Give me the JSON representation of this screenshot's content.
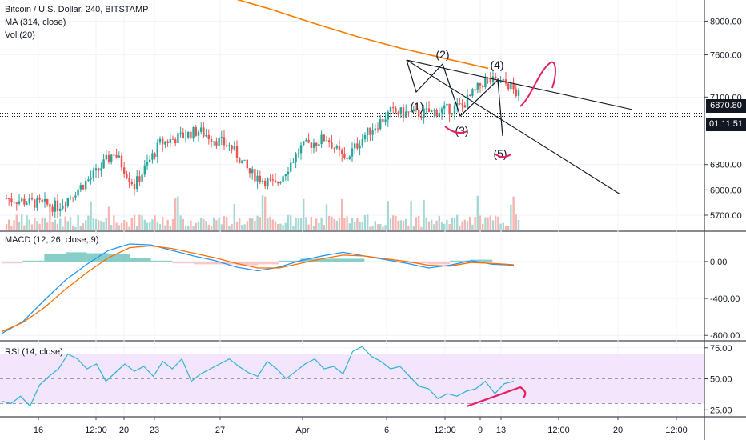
{
  "legend": {
    "symbol": "Bitcoin / U.S. Dollar, 240, BITSTAMP",
    "ma": "MA (314, close)",
    "vol": "Vol (20)",
    "macd": "MACD (12, 26, close, 9)",
    "rsi": "RSI (14, close)"
  },
  "badges": {
    "last_price": "6870.80",
    "countdown": "01:11:51"
  },
  "colors": {
    "up_candle": "#26a69a",
    "down_candle": "#ef5350",
    "ma_line": "#f57c00",
    "macd_line": "#2196f3",
    "signal_line": "#ff6d00",
    "rsi_line": "#2bb5d8",
    "rsi_band": "#f3e5fb",
    "annotation": "#e91e63",
    "drawing": "#131722"
  },
  "chart_data": [
    {
      "type": "candlestick",
      "title": "Bitcoin / U.S. Dollar, 240, BITSTAMP",
      "ylim": [
        5520,
        8250
      ],
      "y_ticks": [
        "8000.00",
        "7600.00",
        "7100.00",
        "6300.00",
        "6000.00",
        "5700.00"
      ],
      "y_tick_values": [
        8000,
        7600,
        7100,
        6300,
        6000,
        5700
      ],
      "x_ticks": [
        "16",
        "12:00",
        "20",
        "23",
        "27",
        "Apr",
        "6",
        "12:00",
        "9",
        "13",
        "12:00",
        "20",
        "12:00"
      ],
      "last_price": 6870.8,
      "wave_labels": [
        "(1)",
        "(2)",
        "(3)",
        "(4)",
        "(5)"
      ],
      "moving_average": {
        "name": "MA (314, close)",
        "values": [
          8300,
          8150,
          7980,
          7820,
          7680,
          7560,
          7440
        ]
      },
      "volume_indicator": "Vol (20)"
    },
    {
      "type": "line",
      "title": "MACD (12, 26, close, 9)",
      "ylim": [
        -850,
        320
      ],
      "y_ticks": [
        "0.00",
        "-400.00",
        "-800.00"
      ],
      "y_tick_values": [
        0,
        -400,
        -800
      ],
      "series": [
        {
          "name": "MACD",
          "values": [
            -780,
            -650,
            -420,
            -200,
            -30,
            120,
            190,
            180,
            120,
            60,
            10,
            -60,
            -100,
            -60,
            10,
            60,
            100,
            60,
            20,
            -20,
            -70,
            -40,
            10,
            -30,
            -40
          ]
        },
        {
          "name": "Signal",
          "values": [
            -760,
            -660,
            -500,
            -300,
            -120,
            40,
            150,
            170,
            140,
            90,
            40,
            -20,
            -70,
            -70,
            -20,
            30,
            70,
            60,
            30,
            0,
            -40,
            -50,
            -10,
            -20,
            -35
          ]
        }
      ]
    },
    {
      "type": "line",
      "title": "RSI (14, close)",
      "ylim": [
        20,
        80
      ],
      "y_ticks": [
        "75.00",
        "50.00",
        "25.00"
      ],
      "y_tick_values": [
        75,
        50,
        25
      ],
      "band": [
        30,
        70
      ],
      "series": [
        {
          "name": "RSI",
          "values": [
            32,
            30,
            36,
            28,
            45,
            52,
            58,
            70,
            66,
            58,
            62,
            48,
            55,
            62,
            56,
            60,
            52,
            64,
            58,
            66,
            48,
            54,
            58,
            62,
            66,
            60,
            55,
            52,
            64,
            58,
            50,
            56,
            62,
            66,
            58,
            60,
            54,
            72,
            76,
            68,
            64,
            58,
            60,
            52,
            44,
            42,
            34,
            38,
            36,
            40,
            42,
            48,
            38,
            46,
            48
          ]
        }
      ]
    }
  ]
}
